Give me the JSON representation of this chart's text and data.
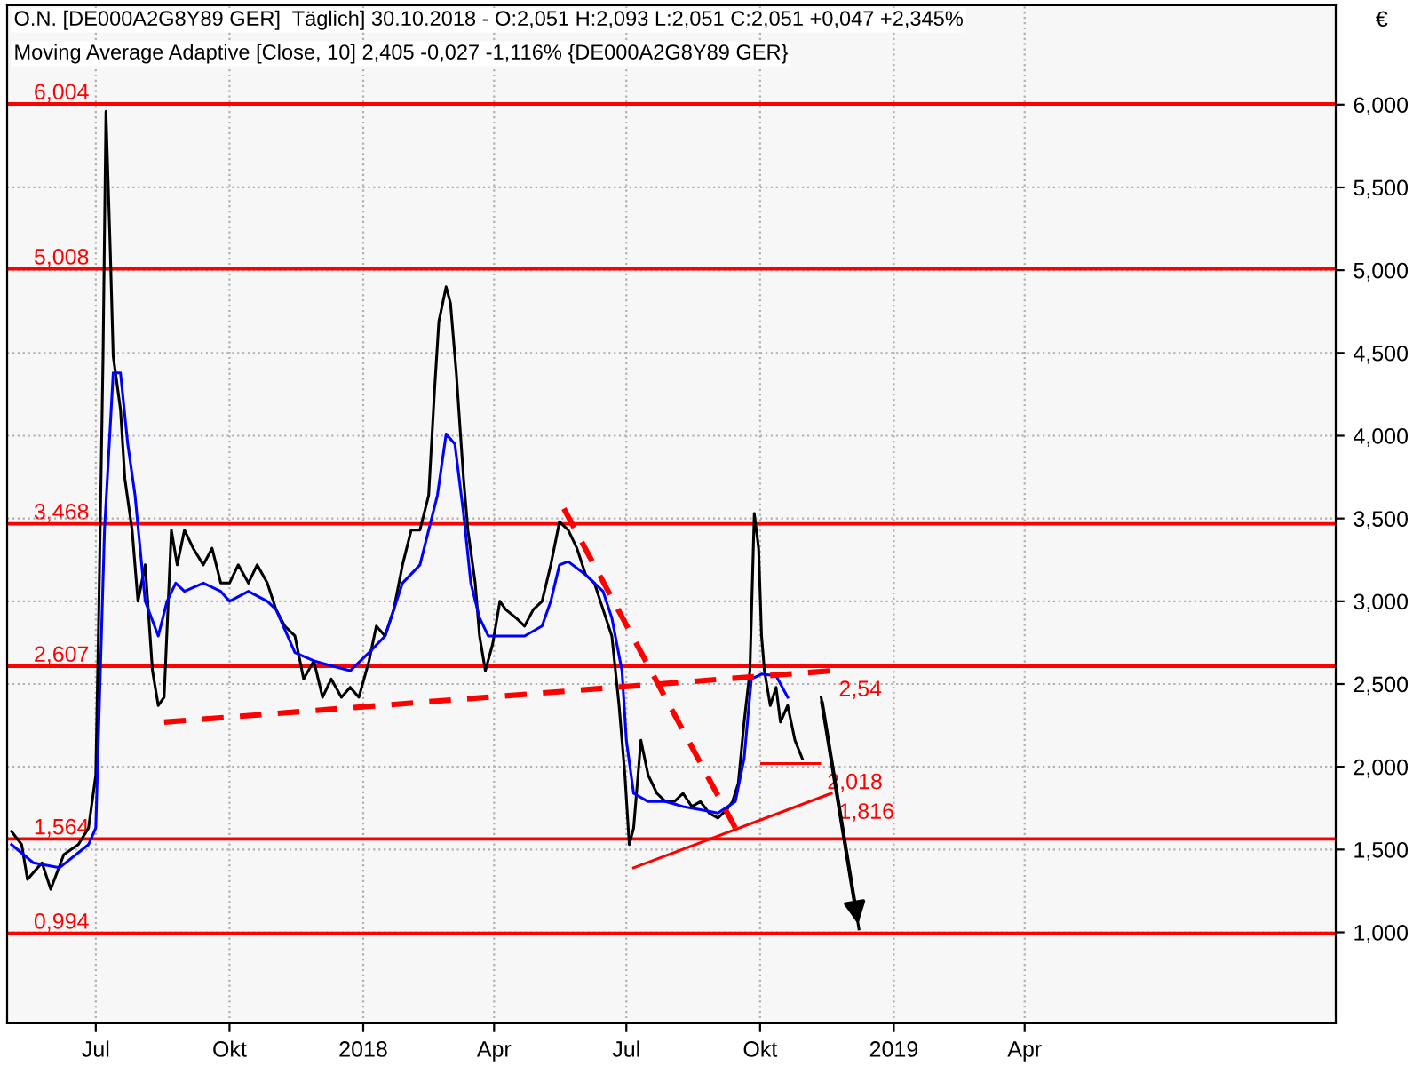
{
  "chart_data": {
    "type": "line",
    "title": "O.N. [DE000A2G8Y89 GER]  Täglich] 30.10.2018 - O:2,051 H:2,093 L:2,051 C:2,051 +0,047 +2,345%",
    "subtitle": "Moving Average Adaptive [Close, 10] 2,405 -0,027 -1,116% {DE000A2G8Y89 GER}",
    "ylabel": "€",
    "xlim": [
      "2017-05-01",
      "2019-11-01"
    ],
    "xticks": [
      {
        "value": "2017-07-01",
        "label": "Jul"
      },
      {
        "value": "2017-10-01",
        "label": "Okt"
      },
      {
        "value": "2018-01-01",
        "label": "2018"
      },
      {
        "value": "2018-04-01",
        "label": "Apr"
      },
      {
        "value": "2018-07-01",
        "label": "Jul"
      },
      {
        "value": "2018-10-01",
        "label": "Okt"
      },
      {
        "value": "2019-01-01",
        "label": "2019"
      },
      {
        "value": "2019-04-01",
        "label": "Apr"
      }
    ],
    "ylim": [
      0.45,
      6.6
    ],
    "yticks": [
      {
        "value": 1,
        "label": "1,000"
      },
      {
        "value": 1.5,
        "label": "1,500"
      },
      {
        "value": 2,
        "label": "2,000"
      },
      {
        "value": 2.5,
        "label": "2,500"
      },
      {
        "value": 3,
        "label": "3,000"
      },
      {
        "value": 3.5,
        "label": "3,500"
      },
      {
        "value": 4,
        "label": "4,000"
      },
      {
        "value": 4.5,
        "label": "4,500"
      },
      {
        "value": 5,
        "label": "5,000"
      },
      {
        "value": 5.5,
        "label": "5,500"
      },
      {
        "value": 6,
        "label": "6,000"
      }
    ],
    "grid": true,
    "legend": false,
    "marker": "none",
    "series": [
      {
        "color": "#000000",
        "line_style": "solid",
        "x": [
          "2017-05-04",
          "2017-05-11",
          "2017-05-15",
          "2017-05-25",
          "2017-05-31",
          "2017-06-09",
          "2017-06-19",
          "2017-06-26",
          "2017-07-01",
          "2017-07-03",
          "2017-07-06",
          "2017-07-08",
          "2017-07-11",
          "2017-07-13",
          "2017-07-18",
          "2017-07-21",
          "2017-07-26",
          "2017-07-30",
          "2017-08-04",
          "2017-08-09",
          "2017-08-13",
          "2017-08-17",
          "2017-08-22",
          "2017-08-26",
          "2017-08-31",
          "2017-09-06",
          "2017-09-13",
          "2017-09-19",
          "2017-09-25",
          "2017-10-01",
          "2017-10-07",
          "2017-10-14",
          "2017-10-20",
          "2017-10-27",
          "2017-11-02",
          "2017-11-08",
          "2017-11-15",
          "2017-11-21",
          "2017-11-28",
          "2017-12-04",
          "2017-12-10",
          "2017-12-17",
          "2017-12-23",
          "2017-12-29",
          "2018-01-05",
          "2018-01-10",
          "2018-01-16",
          "2018-01-22",
          "2018-01-28",
          "2018-02-03",
          "2018-02-09",
          "2018-02-15",
          "2018-02-19",
          "2018-02-22",
          "2018-02-27",
          "2018-03-02",
          "2018-03-06",
          "2018-03-11",
          "2018-03-14",
          "2018-03-19",
          "2018-03-22",
          "2018-03-26",
          "2018-03-31",
          "2018-04-05",
          "2018-04-09",
          "2018-04-16",
          "2018-04-22",
          "2018-04-28",
          "2018-05-04",
          "2018-05-10",
          "2018-05-16",
          "2018-05-22",
          "2018-05-28",
          "2018-06-03",
          "2018-06-09",
          "2018-06-15",
          "2018-06-21",
          "2018-06-26",
          "2018-06-30",
          "2018-07-03",
          "2018-07-06",
          "2018-07-11",
          "2018-07-16",
          "2018-07-22",
          "2018-07-28",
          "2018-08-03",
          "2018-08-09",
          "2018-08-15",
          "2018-08-21",
          "2018-08-27",
          "2018-09-02",
          "2018-09-08",
          "2018-09-12",
          "2018-09-16",
          "2018-09-20",
          "2018-09-24",
          "2018-09-27",
          "2018-09-30",
          "2018-10-02",
          "2018-10-04",
          "2018-10-08",
          "2018-10-12",
          "2018-10-15",
          "2018-10-20",
          "2018-10-25",
          "2018-10-30"
        ],
        "values": [
          1.61,
          1.53,
          1.32,
          1.42,
          1.26,
          1.47,
          1.53,
          1.63,
          1.95,
          2.9,
          4.48,
          5.96,
          5.11,
          4.48,
          4.16,
          3.74,
          3.43,
          3.0,
          3.22,
          2.58,
          2.37,
          2.42,
          3.43,
          3.22,
          3.43,
          3.32,
          3.22,
          3.32,
          3.11,
          3.11,
          3.22,
          3.11,
          3.22,
          3.11,
          2.95,
          2.85,
          2.79,
          2.53,
          2.64,
          2.42,
          2.53,
          2.42,
          2.48,
          2.42,
          2.64,
          2.85,
          2.79,
          2.95,
          3.22,
          3.43,
          3.43,
          3.64,
          4.27,
          4.69,
          4.9,
          4.8,
          4.38,
          3.74,
          3.43,
          3.11,
          2.79,
          2.58,
          2.74,
          3.0,
          2.95,
          2.9,
          2.85,
          2.95,
          3.0,
          3.22,
          3.48,
          3.43,
          3.32,
          3.16,
          3.11,
          2.95,
          2.79,
          2.37,
          1.95,
          1.53,
          1.63,
          2.16,
          1.95,
          1.84,
          1.79,
          1.79,
          1.84,
          1.76,
          1.79,
          1.72,
          1.69,
          1.74,
          1.79,
          1.9,
          2.27,
          2.58,
          3.53,
          3.32,
          2.79,
          2.58,
          2.37,
          2.48,
          2.27,
          2.37,
          2.16,
          2.05
        ]
      },
      {
        "color": "#0000ff",
        "line_style": "solid",
        "x": [
          "2017-05-04",
          "2017-05-19",
          "2017-06-06",
          "2017-06-26",
          "2017-07-01",
          "2017-07-07",
          "2017-07-13",
          "2017-07-18",
          "2017-07-23",
          "2017-07-28",
          "2017-08-04",
          "2017-08-13",
          "2017-08-19",
          "2017-08-25",
          "2017-08-31",
          "2017-09-13",
          "2017-09-25",
          "2017-10-01",
          "2017-10-14",
          "2017-10-27",
          "2017-11-02",
          "2017-11-15",
          "2017-11-28",
          "2017-12-10",
          "2017-12-23",
          "2018-01-05",
          "2018-01-16",
          "2018-01-28",
          "2018-02-09",
          "2018-02-21",
          "2018-02-27",
          "2018-03-05",
          "2018-03-11",
          "2018-03-16",
          "2018-03-22",
          "2018-03-28",
          "2018-04-09",
          "2018-04-22",
          "2018-05-04",
          "2018-05-10",
          "2018-05-16",
          "2018-05-22",
          "2018-06-03",
          "2018-06-15",
          "2018-06-21",
          "2018-06-28",
          "2018-07-01",
          "2018-07-06",
          "2018-07-16",
          "2018-07-28",
          "2018-08-09",
          "2018-08-21",
          "2018-09-02",
          "2018-09-14",
          "2018-09-20",
          "2018-09-25",
          "2018-10-02",
          "2018-10-12",
          "2018-10-20"
        ],
        "values": [
          1.53,
          1.42,
          1.39,
          1.53,
          1.63,
          3.43,
          4.38,
          4.38,
          3.95,
          3.64,
          3.0,
          2.79,
          3.0,
          3.11,
          3.06,
          3.11,
          3.06,
          3.0,
          3.06,
          3.0,
          2.95,
          2.69,
          2.64,
          2.61,
          2.58,
          2.69,
          2.79,
          3.11,
          3.22,
          3.64,
          4.01,
          3.95,
          3.53,
          3.11,
          2.9,
          2.79,
          2.79,
          2.79,
          2.85,
          3.0,
          3.22,
          3.24,
          3.16,
          3.06,
          2.9,
          2.58,
          2.16,
          1.84,
          1.79,
          1.79,
          1.76,
          1.74,
          1.72,
          1.79,
          2.05,
          2.53,
          2.56,
          2.55,
          2.42
        ]
      },
      {
        "color": "#ff0000",
        "line_style": "dashed",
        "x": [
          "2017-08-17",
          "2018-11-19"
        ],
        "values": [
          2.27,
          2.58
        ]
      },
      {
        "color": "#ff0000",
        "line_style": "dashed",
        "x": [
          "2018-05-19",
          "2018-09-14"
        ],
        "values": [
          3.56,
          1.63
        ]
      },
      {
        "color": "#ff0000",
        "line_style": "solid",
        "x": [
          "2018-07-06",
          "2018-11-19"
        ],
        "values": [
          1.39,
          1.84
        ]
      },
      {
        "color": "#ff0000",
        "line_style": "solid",
        "x": [
          "2018-10-02",
          "2018-11-11"
        ],
        "values": [
          2.02,
          2.02
        ]
      },
      {
        "color": "#000000",
        "line_style": "solid",
        "x": [
          "2018-11-12",
          "2018-12-08"
        ],
        "values": [
          2.42,
          1.02
        ]
      }
    ],
    "ref_lines": [
      {
        "axis": "y",
        "value": 6.004,
        "label": "6,004",
        "color": "#ff0000"
      },
      {
        "axis": "y",
        "value": 5.008,
        "label": "5,008",
        "color": "#ff0000"
      },
      {
        "axis": "y",
        "value": 3.468,
        "label": "3,468",
        "color": "#ff0000"
      },
      {
        "axis": "y",
        "value": 2.607,
        "label": "2,607",
        "color": "#ff0000"
      },
      {
        "axis": "y",
        "value": 1.564,
        "label": "1,564",
        "color": "#ff0000"
      },
      {
        "axis": "y",
        "value": 0.994,
        "label": "0,994",
        "color": "#ff0000"
      }
    ],
    "annotations": [
      {
        "text": "2,54",
        "x": "2018-11-19",
        "y": 2.58
      },
      {
        "text": "2,018",
        "x": "2018-11-11",
        "y": 2.02
      },
      {
        "text": "1,816",
        "x": "2018-11-19",
        "y": 1.84
      }
    ]
  }
}
